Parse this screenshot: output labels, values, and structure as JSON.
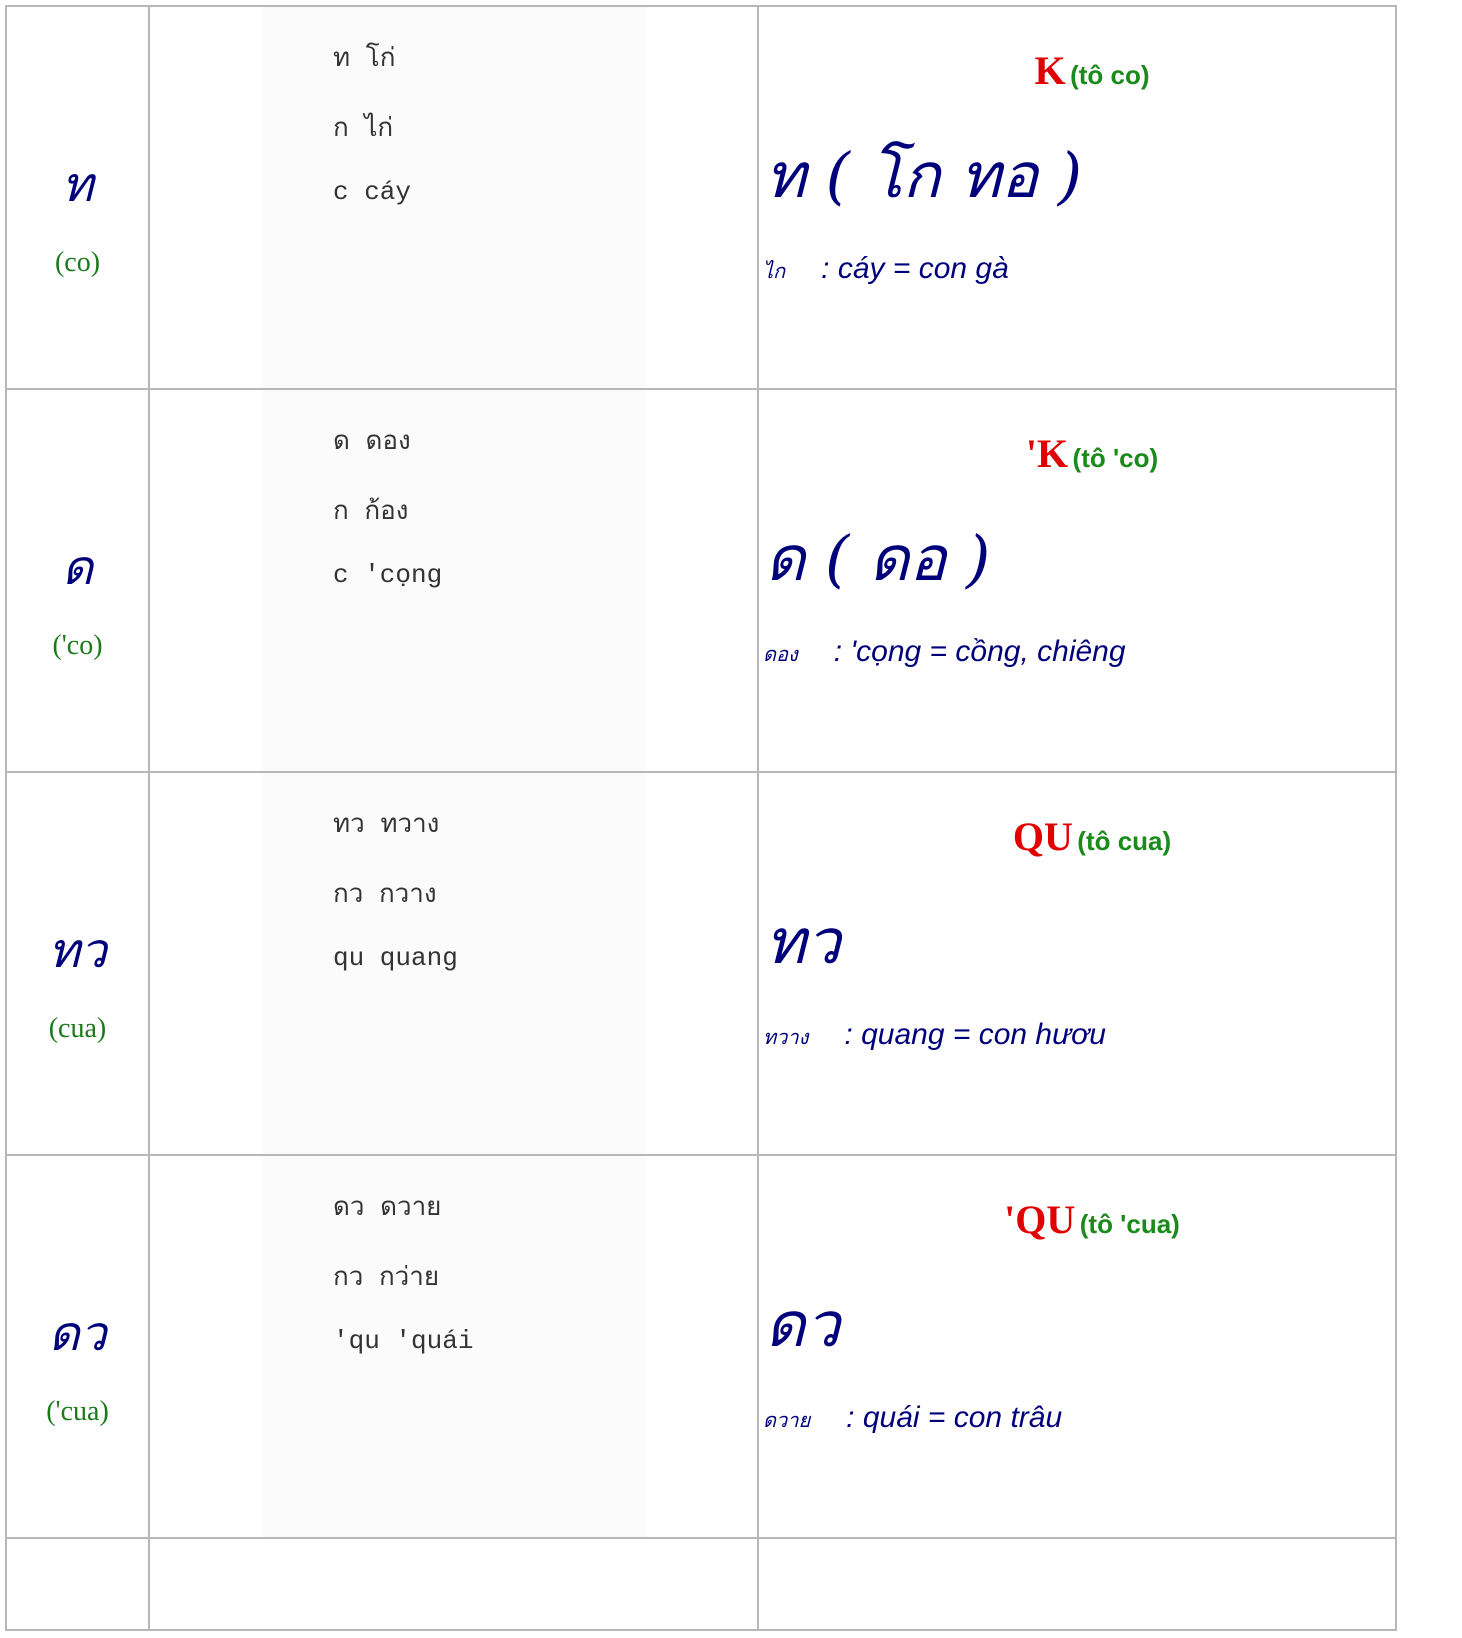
{
  "table": {
    "rows": [
      {
        "letter": "ท",
        "name": "(co)",
        "captions": [
          "ท   โก่",
          "ก   ไก่",
          "c   cáy"
        ],
        "heading": "K",
        "heading_note": "(tô co)",
        "big": "ท ( โก ทอ )",
        "word_script": "ไก",
        "word": ": cáy = con gà"
      },
      {
        "letter": "ด",
        "name": "('co)",
        "captions": [
          "ด   ดอง",
          "ก   ก้อง",
          "c   'cọng"
        ],
        "heading": "'K",
        "heading_note": "(tô 'co)",
        "big": "ด ( ดอ )",
        "word_script": "ดอง",
        "word": ": 'cọng = cồng, chiêng"
      },
      {
        "letter": "ทว",
        "name": "(cua)",
        "captions": [
          "ทว  ทวาง",
          "กว  กวาง",
          "qu  quang"
        ],
        "heading": "QU",
        "heading_note": "(tô cua)",
        "big": "ทว",
        "word_script": "ทวาง",
        "word": ": quang = con hươu"
      },
      {
        "letter": "ดว",
        "name": "('cua)",
        "captions": [
          "ดว  ดวาย",
          "กว  กว่าย",
          "'qu  'quái"
        ],
        "heading": "'QU",
        "heading_note": "(tô 'cua)",
        "big": "ดว",
        "word_script": "ดวาย",
        "word": ": quái = con trâu"
      }
    ]
  }
}
